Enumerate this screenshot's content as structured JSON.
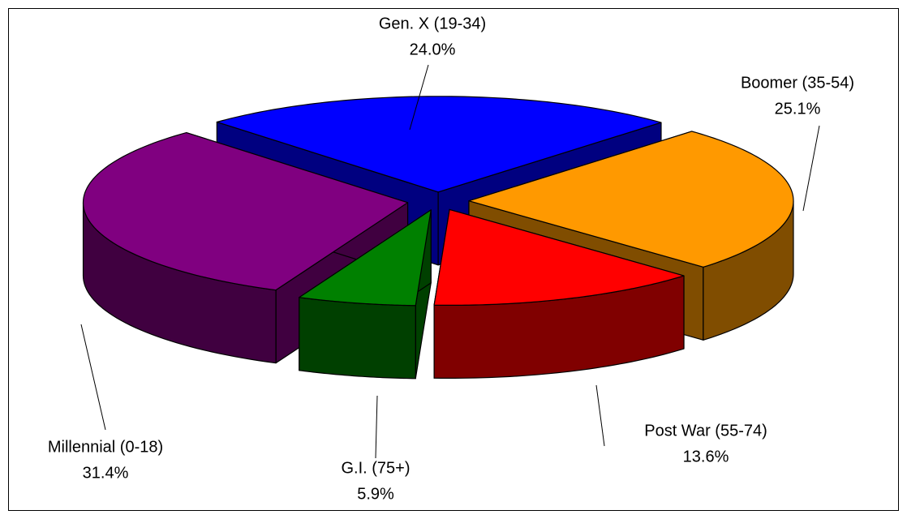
{
  "chart_data": {
    "type": "pie",
    "three_d": true,
    "exploded": true,
    "categories": [
      "Gen. X (19-34)",
      "Boomer (35-54)",
      "Post War (55-74)",
      "G.I. (75+)",
      "Millennial (0-18)"
    ],
    "values": [
      24.0,
      25.1,
      13.6,
      5.9,
      31.4
    ],
    "value_labels": [
      "24.0%",
      "25.1%",
      "13.6%",
      "5.9%",
      "31.4%"
    ],
    "colors": [
      "#0000ff",
      "#ff9900",
      "#ff0000",
      "#008000",
      "#800080"
    ]
  }
}
